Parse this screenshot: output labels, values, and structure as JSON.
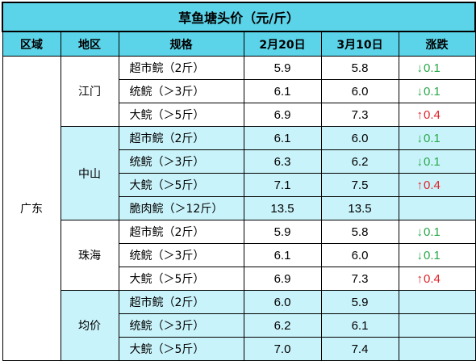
{
  "title": "草鱼塘头价（元/斤）",
  "headers": [
    "区域",
    "地区",
    "规格",
    "2月20日",
    "3月10日",
    "涨跌"
  ],
  "region": "广东",
  "groups": [
    {
      "area": "江门",
      "rows": [
        {
          "spec": "超市鲩（2斤）",
          "feb20": "5.9",
          "mar10": "5.8",
          "change": "0.1",
          "direction": "down"
        },
        {
          "spec": "统鲩（＞3斤）",
          "feb20": "6.1",
          "mar10": "6.0",
          "change": "0.1",
          "direction": "down"
        },
        {
          "spec": "大鲩（＞5斤）",
          "feb20": "6.9",
          "mar10": "7.3",
          "change": "0.4",
          "direction": "up"
        }
      ]
    },
    {
      "area": "中山",
      "rows": [
        {
          "spec": "超市鲩（2斤）",
          "feb20": "6.1",
          "mar10": "6.0",
          "change": "0.1",
          "direction": "down"
        },
        {
          "spec": "统鲩（＞3斤）",
          "feb20": "6.3",
          "mar10": "6.2",
          "change": "0.1",
          "direction": "down"
        },
        {
          "spec": "大鲩（＞5斤）",
          "feb20": "7.1",
          "mar10": "7.5",
          "change": "0.4",
          "direction": "up"
        },
        {
          "spec": "脆肉鲩（＞12斤）",
          "feb20": "13.5",
          "mar10": "13.5",
          "change": "",
          "direction": ""
        }
      ]
    },
    {
      "area": "珠海",
      "rows": [
        {
          "spec": "超市鲩（2斤）",
          "feb20": "5.9",
          "mar10": "5.8",
          "change": "0.1",
          "direction": "down"
        },
        {
          "spec": "统鲩（＞3斤）",
          "feb20": "6.1",
          "mar10": "6.0",
          "change": "0.1",
          "direction": "down"
        },
        {
          "spec": "大鲩（＞5斤）",
          "feb20": "6.9",
          "mar10": "7.3",
          "change": "0.4",
          "direction": "up"
        }
      ]
    },
    {
      "area": "均价",
      "rows": [
        {
          "spec": "超市鲩（2斤）",
          "feb20": "6.0",
          "mar10": "5.9",
          "change": "",
          "direction": ""
        },
        {
          "spec": "统鲩（＞3斤）",
          "feb20": "6.2",
          "mar10": "6.1",
          "change": "",
          "direction": ""
        },
        {
          "spec": "大鲩（＞5斤）",
          "feb20": "7.0",
          "mar10": "7.4",
          "change": "",
          "direction": ""
        }
      ]
    }
  ],
  "arrows": {
    "up": "↑",
    "down": "↓"
  },
  "colors": {
    "header_bg": "#5bd3e8",
    "band_bg": "#c9f3fa",
    "down": "#2aa84a",
    "up": "#e0242a"
  }
}
